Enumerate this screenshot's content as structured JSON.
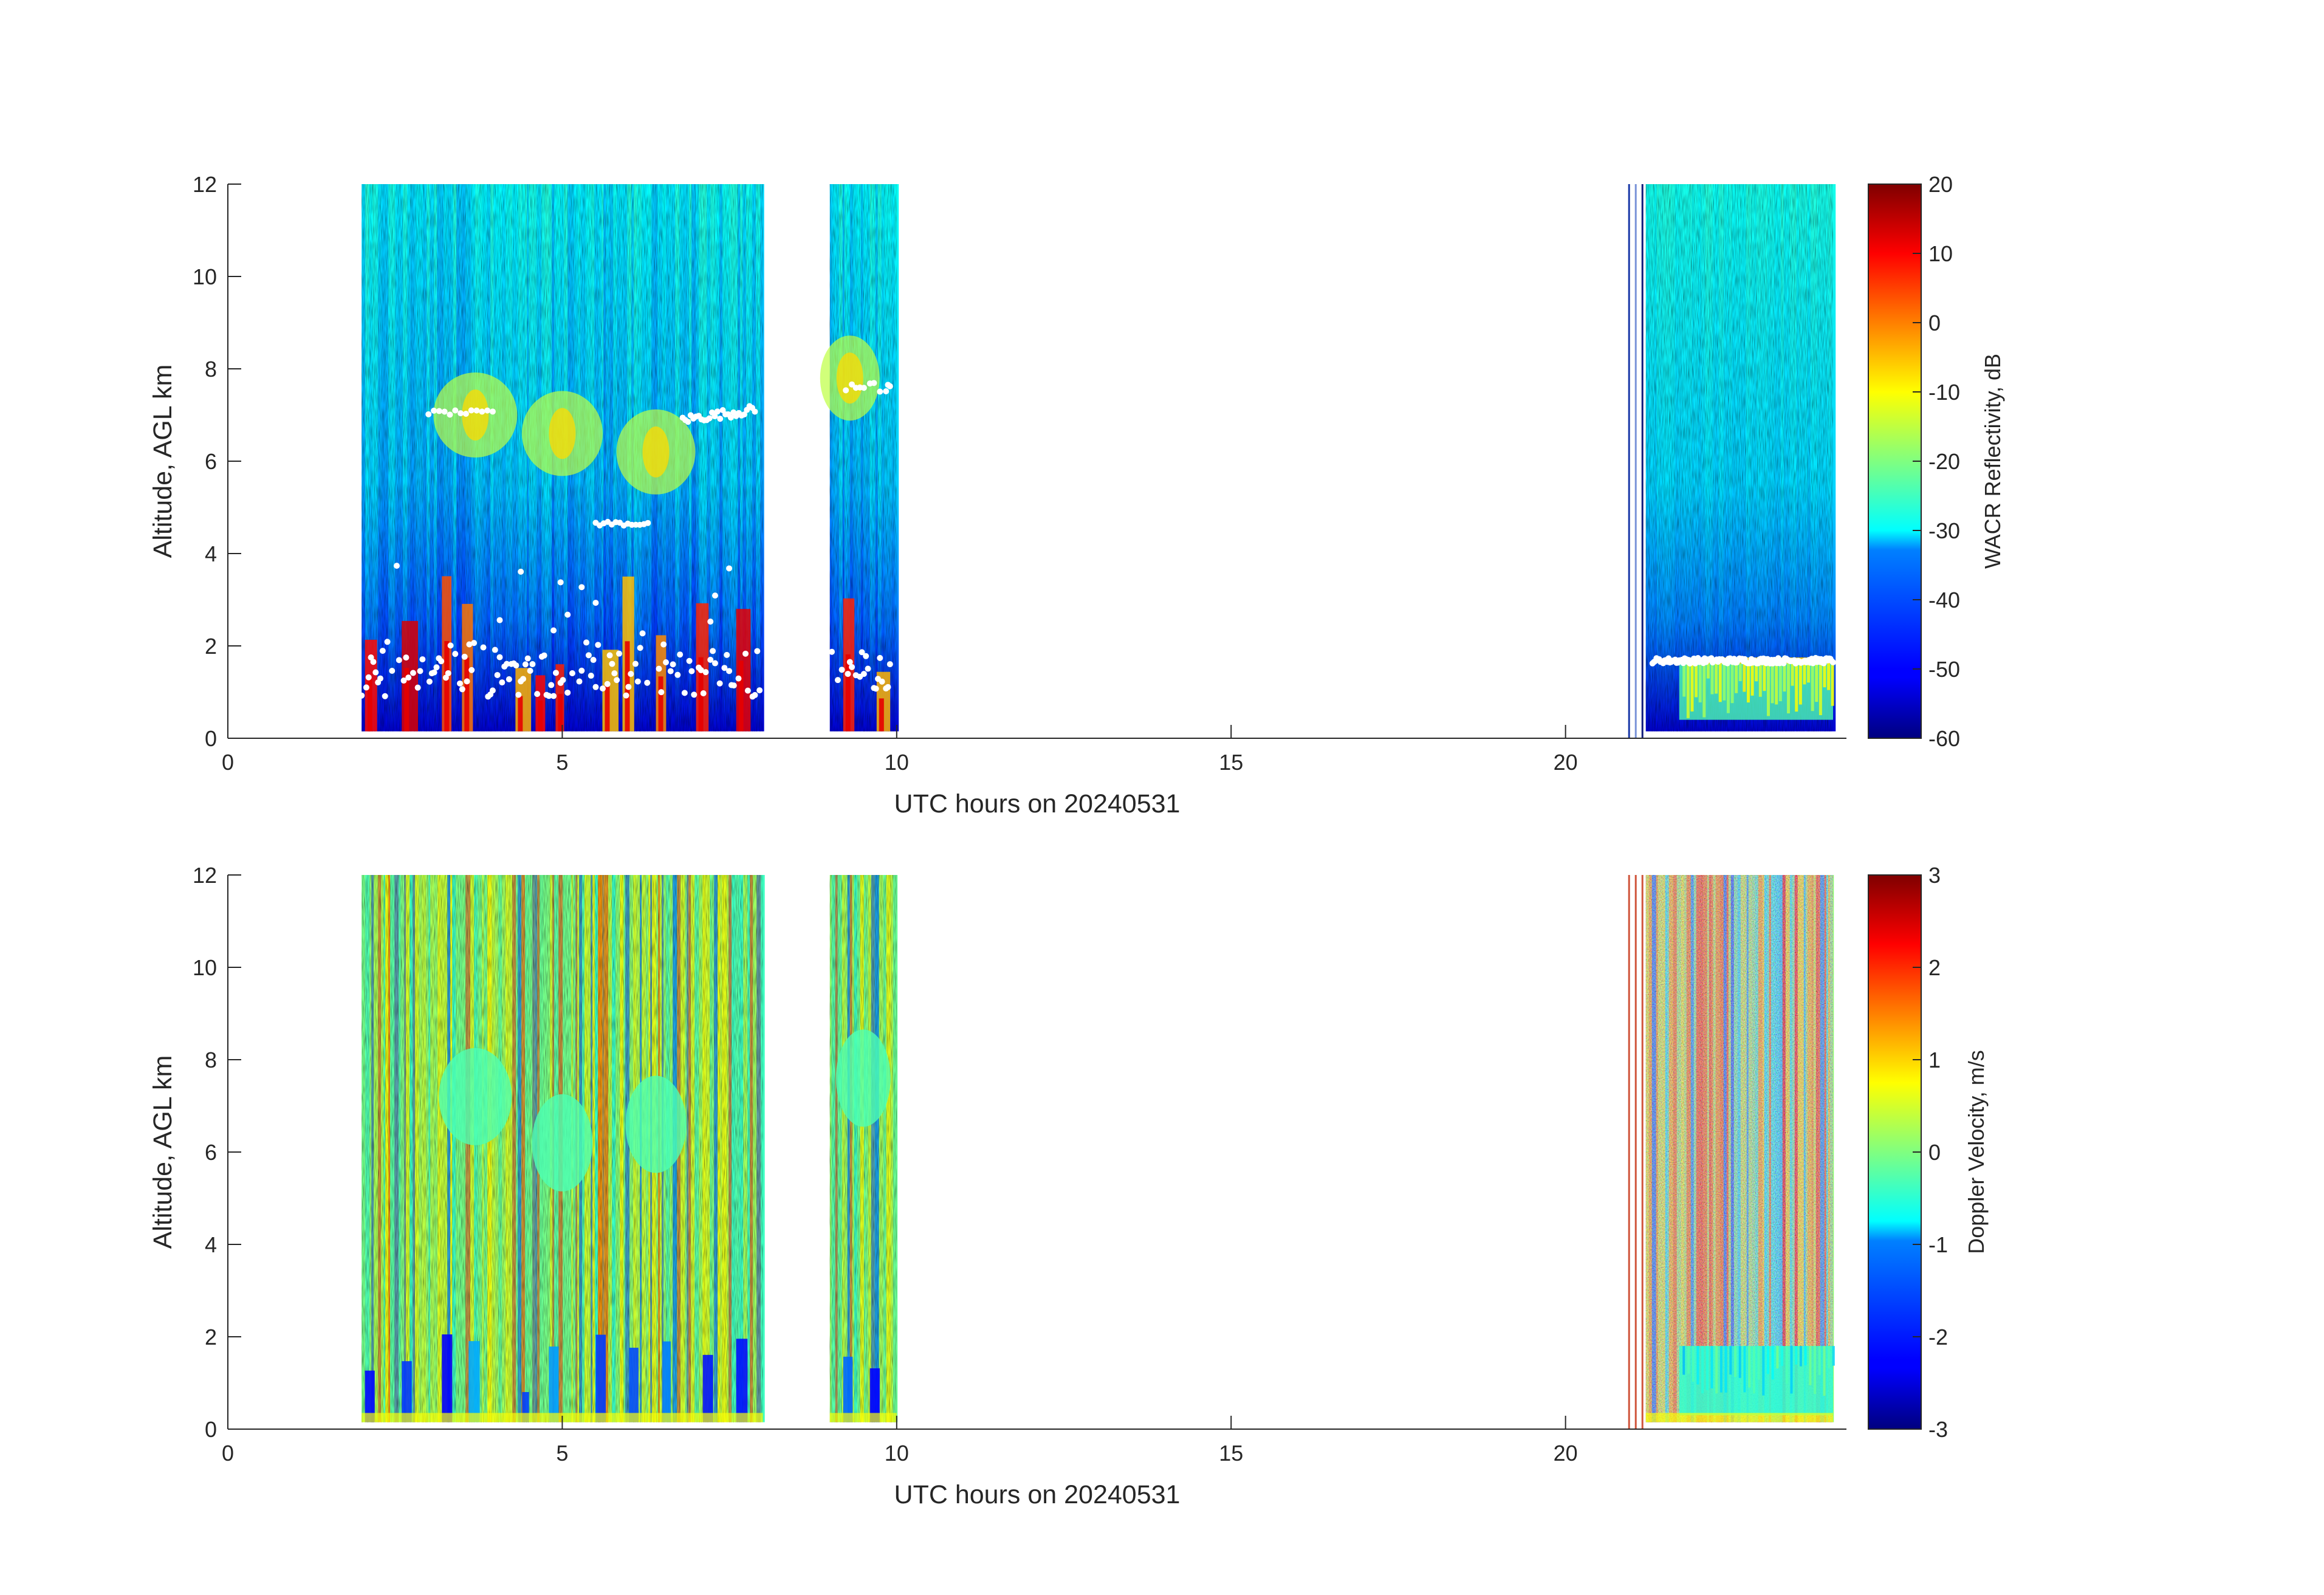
{
  "chart_data": [
    {
      "type": "heatmap",
      "name": "reflectivity",
      "xlabel": "UTC hours on 20240531",
      "ylabel": "Altitude, AGL km",
      "xlim": [
        0,
        24.2
      ],
      "ylim": [
        0,
        12
      ],
      "xticks": [
        "0",
        "5",
        "10",
        "15",
        "20"
      ],
      "yticks": [
        "0",
        "2",
        "4",
        "6",
        "8",
        "10",
        "12"
      ],
      "colorbar": {
        "label": "WACR Reflectivity, dB",
        "range": [
          -60,
          20
        ],
        "ticks": [
          "-60",
          "-50",
          "-40",
          "-30",
          "-20",
          "-10",
          "0",
          "10",
          "20"
        ],
        "colormap": "jet"
      },
      "data_segments_hours": [
        [
          2.0,
          8.0
        ],
        [
          9.0,
          10.0
        ],
        [
          21.2,
          24.0
        ]
      ],
      "overlay": "white dots (cloud base estimates)"
    },
    {
      "type": "heatmap",
      "name": "doppler",
      "xlabel": "UTC hours on 20240531",
      "ylabel": "Altitude, AGL km",
      "xlim": [
        0,
        24.2
      ],
      "ylim": [
        0,
        12
      ],
      "xticks": [
        "0",
        "5",
        "10",
        "15",
        "20"
      ],
      "yticks": [
        "0",
        "2",
        "4",
        "6",
        "8",
        "10",
        "12"
      ],
      "colorbar": {
        "label": "Doppler Velocity, m/s",
        "range": [
          -3,
          3
        ],
        "ticks": [
          "-3",
          "-2",
          "-1",
          "0",
          "1",
          "2",
          "3"
        ],
        "colormap": "jet"
      },
      "data_segments_hours": [
        [
          2.0,
          8.0
        ],
        [
          9.0,
          10.0
        ],
        [
          21.2,
          24.0
        ]
      ]
    }
  ],
  "colors": {
    "axis": "#262626",
    "background": "#ffffff"
  }
}
